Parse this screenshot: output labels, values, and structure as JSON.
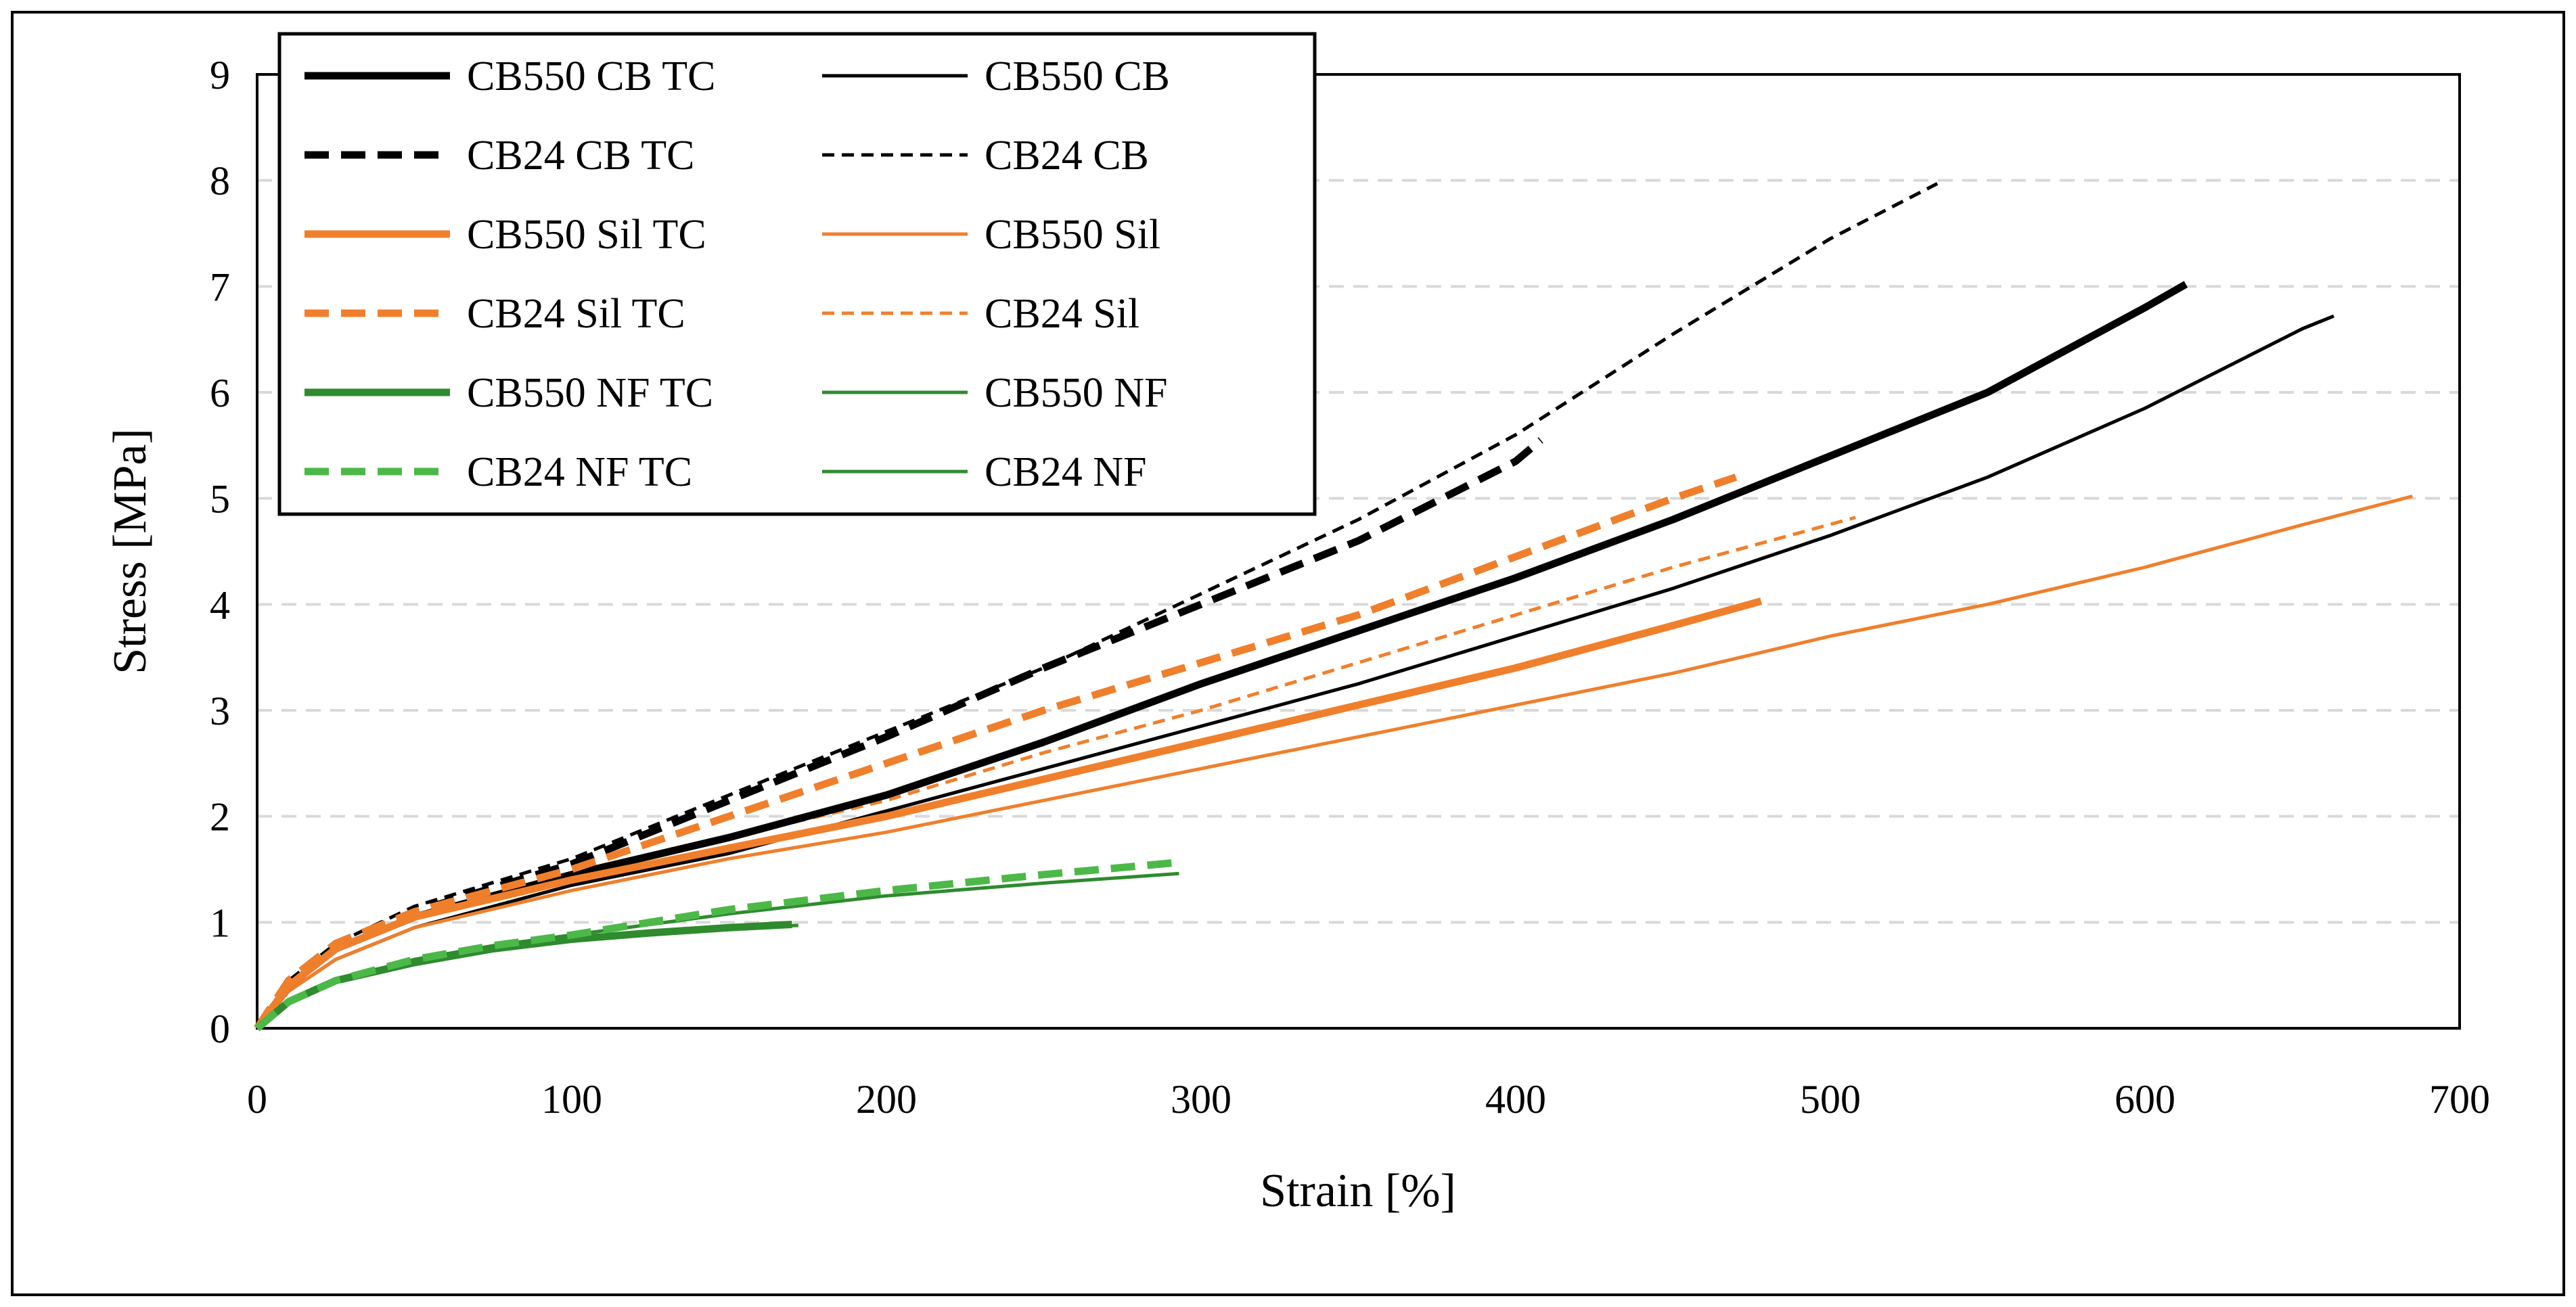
{
  "chart_data": {
    "type": "line",
    "title": "",
    "xlabel": "Strain [%]",
    "ylabel": "Stress  [MPa]",
    "xlim": [
      0,
      700
    ],
    "ylim": [
      0,
      9
    ],
    "x_ticks": [
      "0",
      "100",
      "200",
      "300",
      "400",
      "500",
      "600",
      "700"
    ],
    "y_ticks": [
      "0",
      "1",
      "2",
      "3",
      "4",
      "5",
      "6",
      "7",
      "8",
      "9"
    ],
    "grid": "horizontal-dashed",
    "legend_position": "top-left",
    "series": [
      {
        "name": "CB550 CB TC",
        "color": "#000000",
        "style": "solid-thick",
        "x": [
          0,
          10,
          25,
          50,
          100,
          150,
          200,
          250,
          300,
          350,
          400,
          450,
          500,
          550,
          600,
          613
        ],
        "y": [
          0,
          0.4,
          0.75,
          1.05,
          1.45,
          1.8,
          2.2,
          2.7,
          3.25,
          3.75,
          4.25,
          4.8,
          5.4,
          6.0,
          6.8,
          7.02
        ]
      },
      {
        "name": "CB550 CB",
        "color": "#000000",
        "style": "solid-thin",
        "x": [
          0,
          10,
          25,
          50,
          100,
          150,
          200,
          250,
          300,
          350,
          400,
          450,
          500,
          550,
          600,
          650,
          660
        ],
        "y": [
          0,
          0.35,
          0.65,
          0.95,
          1.35,
          1.65,
          2.05,
          2.45,
          2.85,
          3.25,
          3.7,
          4.15,
          4.65,
          5.2,
          5.85,
          6.6,
          6.72
        ]
      },
      {
        "name": "CB24 CB TC",
        "color": "#000000",
        "style": "dashed-thick",
        "x": [
          0,
          10,
          25,
          50,
          100,
          150,
          200,
          250,
          300,
          350,
          400,
          408
        ],
        "y": [
          0,
          0.45,
          0.8,
          1.1,
          1.55,
          2.15,
          2.75,
          3.4,
          4.0,
          4.6,
          5.35,
          5.55
        ]
      },
      {
        "name": "CB24 CB",
        "color": "#000000",
        "style": "dashed-thin",
        "x": [
          0,
          10,
          25,
          50,
          100,
          150,
          200,
          250,
          300,
          350,
          400,
          450,
          500,
          534
        ],
        "y": [
          0,
          0.45,
          0.8,
          1.15,
          1.6,
          2.2,
          2.8,
          3.4,
          4.1,
          4.8,
          5.6,
          6.55,
          7.45,
          7.97
        ]
      },
      {
        "name": "CB550 Sil TC",
        "color": "#F07F2C",
        "style": "solid-thick",
        "x": [
          0,
          10,
          25,
          50,
          100,
          150,
          200,
          250,
          300,
          350,
          400,
          450,
          478
        ],
        "y": [
          0,
          0.4,
          0.75,
          1.05,
          1.4,
          1.7,
          2.0,
          2.35,
          2.7,
          3.05,
          3.4,
          3.8,
          4.03
        ]
      },
      {
        "name": "CB550 Sil",
        "color": "#F07F2C",
        "style": "solid-thin",
        "x": [
          0,
          10,
          25,
          50,
          100,
          150,
          200,
          250,
          300,
          350,
          400,
          450,
          500,
          550,
          600,
          650,
          685
        ],
        "y": [
          0,
          0.35,
          0.65,
          0.95,
          1.3,
          1.6,
          1.85,
          2.15,
          2.45,
          2.75,
          3.05,
          3.35,
          3.7,
          4.0,
          4.35,
          4.75,
          5.02
        ]
      },
      {
        "name": "CB24 Sil TC",
        "color": "#F07F2C",
        "style": "dashed-thick",
        "x": [
          0,
          10,
          25,
          50,
          100,
          150,
          200,
          250,
          300,
          350,
          400,
          450,
          470
        ],
        "y": [
          0,
          0.45,
          0.8,
          1.1,
          1.5,
          2.0,
          2.5,
          3.0,
          3.45,
          3.9,
          4.45,
          5.0,
          5.2
        ]
      },
      {
        "name": "CB24 Sil",
        "color": "#F07F2C",
        "style": "dashed-thin",
        "x": [
          0,
          10,
          25,
          50,
          100,
          150,
          200,
          250,
          300,
          350,
          400,
          450,
          508
        ],
        "y": [
          0,
          0.4,
          0.75,
          1.05,
          1.45,
          1.8,
          2.15,
          2.6,
          3.0,
          3.45,
          3.9,
          4.35,
          4.82
        ]
      },
      {
        "name": "CB550 NF TC",
        "color": "#2E8B2E",
        "style": "solid-thick",
        "x": [
          0,
          10,
          25,
          50,
          75,
          100,
          125,
          150,
          170
        ],
        "y": [
          0,
          0.25,
          0.45,
          0.62,
          0.75,
          0.84,
          0.9,
          0.95,
          0.98
        ]
      },
      {
        "name": "CB550 NF",
        "color": "#2E8B2E",
        "style": "solid-thin",
        "x": [
          0,
          10,
          25,
          50,
          75,
          100,
          150,
          200,
          250,
          293
        ],
        "y": [
          0,
          0.25,
          0.45,
          0.65,
          0.78,
          0.88,
          1.08,
          1.25,
          1.37,
          1.46
        ]
      },
      {
        "name": "CB24 NF TC",
        "color": "#4CB848",
        "style": "dashed-thick",
        "x": [
          0,
          10,
          25,
          50,
          75,
          100,
          150,
          200,
          250,
          291
        ],
        "y": [
          0,
          0.25,
          0.45,
          0.65,
          0.78,
          0.88,
          1.12,
          1.3,
          1.45,
          1.56
        ]
      },
      {
        "name": "CB24 NF",
        "color": "#2E8B2E",
        "style": "solid-thin",
        "x": [
          0,
          10,
          25,
          50,
          75,
          100,
          125,
          150,
          172
        ],
        "y": [
          0,
          0.25,
          0.45,
          0.62,
          0.75,
          0.83,
          0.9,
          0.95,
          0.97
        ]
      }
    ],
    "legend": {
      "columns": 2,
      "order": [
        "CB550 CB TC",
        "CB550 CB",
        "CB24 CB TC",
        "CB24 CB",
        "CB550 Sil TC",
        "CB550 Sil",
        "CB24 Sil TC",
        "CB24 Sil",
        "CB550 NF TC",
        "CB550 NF",
        "CB24 NF TC",
        "CB24 NF"
      ]
    }
  }
}
